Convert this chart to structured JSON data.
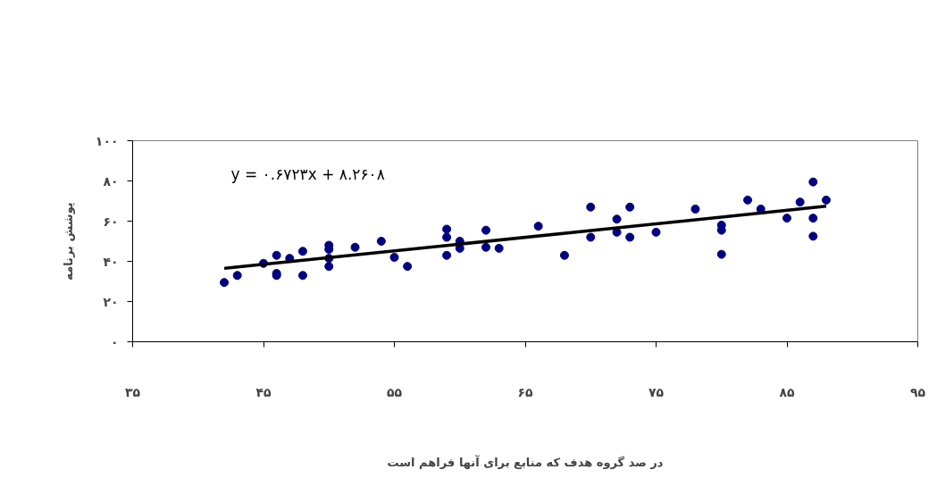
{
  "chart_data": {
    "type": "scatter",
    "xlabel": "در صد گروه هدف که منابع برای آنها فراهم است",
    "ylabel": "پوشش برنامه",
    "annotations": [
      "y = ۰.۶۷۲۳x + ۸.۲۶۰۸"
    ],
    "grid": false,
    "xlim": [
      35,
      95
    ],
    "ylim": [
      0,
      100
    ],
    "xticks": [
      {
        "value": 35,
        "label": "۳۵"
      },
      {
        "value": 45,
        "label": "۴۵"
      },
      {
        "value": 55,
        "label": "۵۵"
      },
      {
        "value": 65,
        "label": "۶۵"
      },
      {
        "value": 75,
        "label": "۷۵"
      },
      {
        "value": 85,
        "label": "۸۵"
      },
      {
        "value": 95,
        "label": "۹۵"
      }
    ],
    "yticks": [
      {
        "value": 0,
        "label": "۰"
      },
      {
        "value": 20,
        "label": "۲۰"
      },
      {
        "value": 40,
        "label": "۴۰"
      },
      {
        "value": 60,
        "label": "۶۰"
      },
      {
        "value": 80,
        "label": "۸۰"
      },
      {
        "value": 100,
        "label": "۱۰۰"
      }
    ],
    "series": [
      {
        "marker": "circle",
        "color": "#000080",
        "x": [
          42,
          43,
          45,
          46,
          46,
          46,
          47,
          48,
          48,
          50,
          50,
          50,
          50,
          52,
          54,
          55,
          56,
          59,
          59,
          59,
          60,
          60,
          62,
          62,
          63,
          66,
          68,
          70,
          70,
          72,
          72,
          73,
          73,
          75,
          78,
          80,
          80,
          80,
          82,
          83,
          85,
          86,
          87,
          87,
          87,
          88
        ],
        "values": [
          29.5,
          33,
          39,
          43,
          34,
          33,
          41.5,
          45,
          33,
          48,
          46,
          41.5,
          37.5,
          47,
          50,
          42,
          37.5,
          56,
          52,
          43,
          50,
          46.5,
          55.5,
          47,
          46.5,
          57.5,
          43,
          67,
          52,
          61,
          54.5,
          67,
          52,
          54.5,
          66,
          58,
          55.5,
          43.5,
          70.5,
          66,
          61.5,
          69.5,
          79.5,
          61.5,
          52.5,
          70.5
        ]
      },
      {
        "type": "line",
        "color": "#000000",
        "x": [
          42,
          88
        ],
        "values": [
          36.5,
          67.4
        ]
      }
    ]
  }
}
